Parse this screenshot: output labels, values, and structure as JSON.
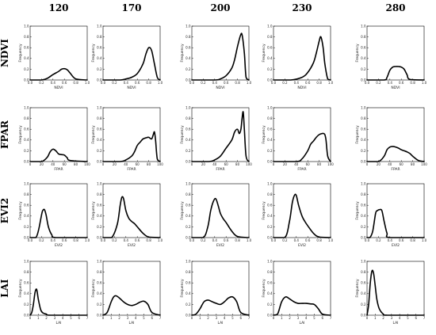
{
  "columns": [
    "120",
    "170",
    "200",
    "230",
    "280"
  ],
  "rows": [
    "NDVI",
    "FPAR",
    "EVI2",
    "LAI"
  ],
  "chart_data": [
    {
      "row": "NDVI",
      "type": "line",
      "xlabel": "NDVI",
      "ylabel": "Frequency",
      "xlim": [
        0,
        1
      ],
      "ylim": [
        0,
        1
      ],
      "xticks": [
        "0.0",
        "0.2",
        "0.4",
        "0.6",
        "0.8",
        "1.0"
      ],
      "yticks": [
        "0.0",
        "0.2",
        "0.4",
        "0.6",
        "0.8",
        "1.0"
      ],
      "panels": [
        {
          "column": "120",
          "x": [
            0.0,
            0.2,
            0.3,
            0.4,
            0.5,
            0.55,
            0.6,
            0.65,
            0.7,
            0.8,
            1.0
          ],
          "y": [
            0,
            0,
            0.03,
            0.1,
            0.16,
            0.2,
            0.21,
            0.19,
            0.13,
            0.02,
            0
          ]
        },
        {
          "column": "170",
          "x": [
            0.0,
            0.3,
            0.4,
            0.5,
            0.6,
            0.7,
            0.75,
            0.8,
            0.85,
            0.9,
            0.95,
            1.0
          ],
          "y": [
            0,
            0,
            0.02,
            0.05,
            0.12,
            0.3,
            0.48,
            0.6,
            0.55,
            0.3,
            0.05,
            0
          ]
        },
        {
          "column": "200",
          "x": [
            0.0,
            0.4,
            0.5,
            0.6,
            0.7,
            0.75,
            0.8,
            0.85,
            0.88,
            0.92,
            0.95,
            1.0
          ],
          "y": [
            0,
            0,
            0.02,
            0.08,
            0.22,
            0.38,
            0.62,
            0.82,
            0.84,
            0.5,
            0.05,
            0
          ]
        },
        {
          "column": "230",
          "x": [
            0.0,
            0.3,
            0.5,
            0.6,
            0.7,
            0.75,
            0.8,
            0.83,
            0.87,
            0.9,
            0.95,
            1.0
          ],
          "y": [
            0,
            0,
            0.05,
            0.14,
            0.32,
            0.5,
            0.72,
            0.8,
            0.6,
            0.3,
            0.02,
            0
          ]
        },
        {
          "column": "280",
          "x": [
            0.0,
            0.3,
            0.35,
            0.4,
            0.45,
            0.5,
            0.55,
            0.6,
            0.65,
            0.7,
            0.75,
            1.0
          ],
          "y": [
            0,
            0,
            0.05,
            0.18,
            0.24,
            0.25,
            0.25,
            0.24,
            0.2,
            0.1,
            0.01,
            0
          ]
        }
      ]
    },
    {
      "row": "FPAR",
      "type": "line",
      "xlabel": "FPAR",
      "ylabel": "Frequency",
      "xlim": [
        0,
        100
      ],
      "ylim": [
        0,
        1
      ],
      "xticks": [
        "0",
        "20",
        "40",
        "60",
        "80",
        "100"
      ],
      "yticks": [
        "0.0",
        "0.2",
        "0.4",
        "0.6",
        "0.8",
        "1.0"
      ],
      "panels": [
        {
          "column": "120",
          "x": [
            0,
            20,
            30,
            35,
            40,
            45,
            50,
            55,
            60,
            65,
            70,
            100
          ],
          "y": [
            0,
            0,
            0.08,
            0.18,
            0.23,
            0.2,
            0.14,
            0.13,
            0.12,
            0.07,
            0.02,
            0
          ]
        },
        {
          "column": "170",
          "x": [
            0,
            30,
            40,
            50,
            55,
            60,
            65,
            70,
            75,
            80,
            85,
            88,
            90,
            92,
            95,
            100
          ],
          "y": [
            0,
            0,
            0.03,
            0.1,
            0.18,
            0.3,
            0.36,
            0.42,
            0.44,
            0.45,
            0.42,
            0.5,
            0.55,
            0.4,
            0.05,
            0
          ]
        },
        {
          "column": "200",
          "x": [
            0,
            30,
            40,
            50,
            60,
            70,
            75,
            80,
            83,
            86,
            88,
            90,
            92,
            95,
            100
          ],
          "y": [
            0,
            0,
            0.03,
            0.1,
            0.25,
            0.4,
            0.55,
            0.6,
            0.52,
            0.6,
            0.8,
            0.92,
            0.6,
            0.1,
            0
          ]
        },
        {
          "column": "230",
          "x": [
            0,
            40,
            50,
            60,
            65,
            70,
            75,
            80,
            85,
            88,
            90,
            92,
            95,
            100
          ],
          "y": [
            0,
            0,
            0.05,
            0.2,
            0.32,
            0.38,
            0.45,
            0.5,
            0.52,
            0.52,
            0.5,
            0.4,
            0.1,
            0
          ]
        },
        {
          "column": "280",
          "x": [
            0,
            20,
            30,
            35,
            40,
            45,
            50,
            55,
            60,
            65,
            70,
            75,
            80,
            90,
            100
          ],
          "y": [
            0,
            0,
            0.1,
            0.22,
            0.27,
            0.28,
            0.27,
            0.25,
            0.22,
            0.2,
            0.18,
            0.15,
            0.1,
            0.02,
            0
          ]
        }
      ]
    },
    {
      "row": "EVI2",
      "type": "line",
      "xlabel": "EVI2",
      "ylabel": "Frequency",
      "xlim": [
        0,
        1
      ],
      "ylim": [
        0,
        1
      ],
      "xticks": [
        "0.0",
        "0.2",
        "0.4",
        "0.6",
        "0.8",
        "1.0"
      ],
      "yticks": [
        "0.0",
        "0.2",
        "0.4",
        "0.6",
        "0.8",
        "1.0"
      ],
      "panels": [
        {
          "column": "120",
          "x": [
            0.0,
            0.1,
            0.15,
            0.2,
            0.22,
            0.25,
            0.28,
            0.32,
            0.38,
            0.45,
            1.0
          ],
          "y": [
            0,
            0,
            0.15,
            0.42,
            0.5,
            0.52,
            0.42,
            0.2,
            0.05,
            0,
            0
          ]
        },
        {
          "column": "170",
          "x": [
            0.0,
            0.15,
            0.25,
            0.3,
            0.33,
            0.36,
            0.4,
            0.45,
            0.5,
            0.55,
            0.6,
            0.7,
            0.8,
            1.0
          ],
          "y": [
            0,
            0,
            0.25,
            0.6,
            0.75,
            0.72,
            0.5,
            0.36,
            0.3,
            0.26,
            0.2,
            0.08,
            0.01,
            0
          ]
        },
        {
          "column": "200",
          "x": [
            0.0,
            0.2,
            0.28,
            0.33,
            0.38,
            0.42,
            0.46,
            0.5,
            0.55,
            0.6,
            0.7,
            0.8,
            1.0
          ],
          "y": [
            0,
            0,
            0.2,
            0.5,
            0.68,
            0.72,
            0.6,
            0.45,
            0.35,
            0.28,
            0.12,
            0.02,
            0
          ]
        },
        {
          "column": "230",
          "x": [
            0.0,
            0.2,
            0.28,
            0.33,
            0.37,
            0.4,
            0.44,
            0.5,
            0.55,
            0.6,
            0.7,
            0.8,
            1.0
          ],
          "y": [
            0,
            0,
            0.3,
            0.65,
            0.79,
            0.78,
            0.6,
            0.4,
            0.3,
            0.22,
            0.08,
            0.01,
            0
          ]
        },
        {
          "column": "280",
          "x": [
            0.0,
            0.05,
            0.1,
            0.15,
            0.18,
            0.22,
            0.26,
            0.3,
            0.35,
            0.4,
            1.0
          ],
          "y": [
            0,
            0,
            0.12,
            0.45,
            0.5,
            0.52,
            0.5,
            0.3,
            0.08,
            0,
            0
          ]
        }
      ]
    },
    {
      "row": "LAI",
      "type": "line",
      "xlabel": "LAI",
      "ylabel": "Frequency",
      "xlim": [
        0,
        7
      ],
      "ylim": [
        0,
        1
      ],
      "xticks": [
        "0",
        "1",
        "2",
        "3",
        "4",
        "5",
        "6",
        "7"
      ],
      "yticks": [
        "0.0",
        "0.2",
        "0.4",
        "0.6",
        "0.8",
        "1.0"
      ],
      "panels": [
        {
          "column": "120",
          "x": [
            0,
            0.2,
            0.4,
            0.6,
            0.8,
            1.0,
            1.3,
            1.6,
            2.0,
            2.5,
            7
          ],
          "y": [
            0,
            0.05,
            0.2,
            0.42,
            0.48,
            0.3,
            0.1,
            0.04,
            0.02,
            0,
            0
          ]
        },
        {
          "column": "170",
          "x": [
            0,
            0.5,
            1.0,
            1.3,
            1.6,
            2.0,
            2.5,
            3.0,
            3.5,
            4.0,
            4.5,
            5.0,
            5.5,
            6.0,
            7
          ],
          "y": [
            0,
            0.05,
            0.25,
            0.34,
            0.36,
            0.32,
            0.25,
            0.2,
            0.18,
            0.2,
            0.24,
            0.26,
            0.2,
            0.05,
            0
          ]
        },
        {
          "column": "200",
          "x": [
            0,
            0.5,
            1.0,
            1.5,
            2.0,
            2.5,
            3.0,
            3.5,
            4.0,
            4.5,
            5.0,
            5.5,
            6.0,
            7
          ],
          "y": [
            0,
            0.02,
            0.12,
            0.25,
            0.28,
            0.25,
            0.22,
            0.2,
            0.25,
            0.32,
            0.34,
            0.25,
            0.05,
            0
          ]
        },
        {
          "column": "230",
          "x": [
            0,
            0.5,
            1.0,
            1.5,
            2.0,
            2.5,
            3.0,
            3.5,
            4.0,
            4.5,
            5.0,
            5.5,
            6.0,
            7
          ],
          "y": [
            0,
            0.02,
            0.25,
            0.34,
            0.3,
            0.25,
            0.22,
            0.22,
            0.22,
            0.21,
            0.2,
            0.12,
            0.02,
            0
          ]
        },
        {
          "column": "280",
          "x": [
            0,
            0.2,
            0.4,
            0.6,
            0.8,
            1.0,
            1.2,
            1.5,
            2.0,
            2.5,
            7
          ],
          "y": [
            0,
            0.2,
            0.6,
            0.82,
            0.78,
            0.55,
            0.3,
            0.12,
            0.02,
            0,
            0
          ]
        }
      ]
    }
  ]
}
